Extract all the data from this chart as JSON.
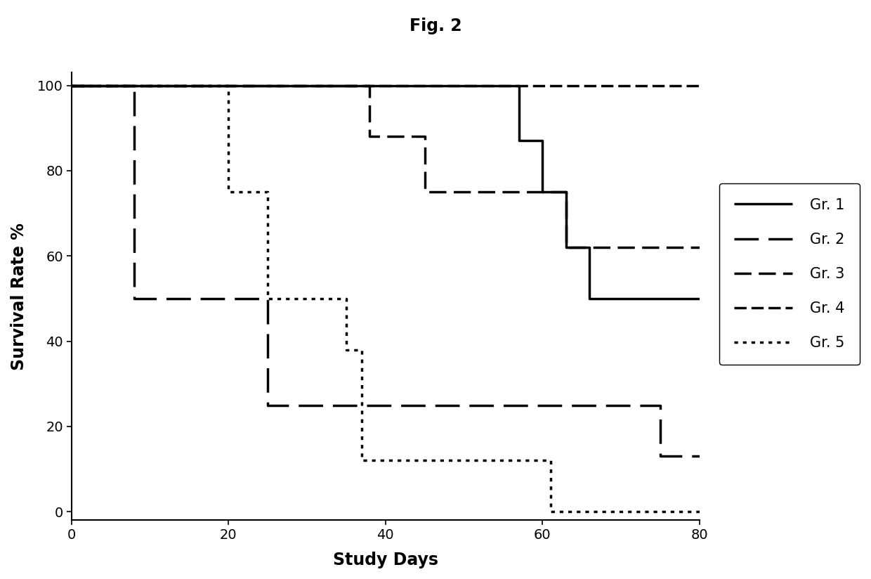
{
  "title": "Fig. 2",
  "xlabel": "Study Days",
  "ylabel": "Survival Rate %",
  "xlim": [
    0,
    80
  ],
  "ylim": [
    -2,
    103
  ],
  "xticks": [
    0,
    20,
    40,
    60,
    80
  ],
  "yticks": [
    0,
    20,
    40,
    60,
    80,
    100
  ],
  "groups": {
    "Gr. 1": {
      "x": [
        0,
        57,
        57,
        60,
        60,
        63,
        63,
        66,
        66,
        80
      ],
      "y": [
        100,
        100,
        87,
        87,
        75,
        75,
        62,
        62,
        50,
        50
      ],
      "linestyle": "solid",
      "linewidth": 2.5,
      "color": "#000000"
    },
    "Gr. 2": {
      "x": [
        0,
        8,
        8,
        25,
        25,
        75,
        75,
        80
      ],
      "y": [
        100,
        100,
        50,
        50,
        25,
        25,
        13,
        13
      ],
      "linestyle": "dashed_large",
      "linewidth": 2.5,
      "color": "#000000"
    },
    "Gr. 3": {
      "x": [
        0,
        38,
        38,
        45,
        45,
        63,
        63,
        80
      ],
      "y": [
        100,
        100,
        88,
        88,
        75,
        75,
        62,
        62
      ],
      "linestyle": "dashed_medium",
      "linewidth": 2.5,
      "color": "#000000"
    },
    "Gr. 4": {
      "x": [
        0,
        57,
        57,
        80
      ],
      "y": [
        100,
        100,
        100,
        100
      ],
      "linestyle": "dashed_small",
      "linewidth": 2.5,
      "color": "#000000"
    },
    "Gr. 5": {
      "x": [
        0,
        20,
        20,
        25,
        25,
        35,
        35,
        37,
        37,
        61,
        61,
        80
      ],
      "y": [
        100,
        100,
        75,
        75,
        50,
        50,
        38,
        38,
        12,
        12,
        0,
        0
      ],
      "linestyle": "dotted",
      "linewidth": 2.5,
      "color": "#000000"
    }
  },
  "legend_labels": [
    "Gr. 1",
    "Gr. 2",
    "Gr. 3",
    "Gr. 4",
    "Gr. 5"
  ],
  "background_color": "#ffffff",
  "title_fontsize": 17,
  "axis_label_fontsize": 17,
  "tick_fontsize": 14,
  "legend_fontsize": 15
}
